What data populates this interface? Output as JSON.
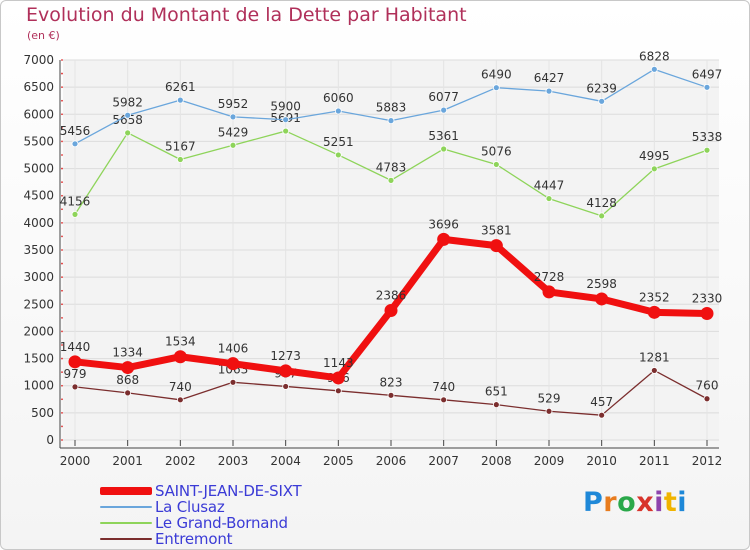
{
  "title": "Evolution du Montant de la Dette par Habitant",
  "subtitle": "(en €)",
  "brand": {
    "text": "Proxiti",
    "letter_colors": [
      "#1e88d8",
      "#e87c1e",
      "#2aa84a",
      "#d8342c",
      "#8e44ad",
      "#f0b400",
      "#1e88d8"
    ]
  },
  "chart_data": {
    "type": "line",
    "title": "Evolution du Montant de la Dette par Habitant",
    "subtitle": "(en €)",
    "x": [
      "2000",
      "2001",
      "2002",
      "2003",
      "2004",
      "2005",
      "2006",
      "2007",
      "2008",
      "2009",
      "2010",
      "2011",
      "2012"
    ],
    "ylim": [
      0,
      7000
    ],
    "yticks": [
      0,
      500,
      1000,
      1500,
      2000,
      2500,
      3000,
      3500,
      4000,
      4500,
      5000,
      5500,
      6000,
      6500,
      7000
    ],
    "grid": true,
    "legend_position": "bottom-left",
    "series": [
      {
        "name": "Entremont",
        "color": "#7b2e2e",
        "values": [
          979,
          868,
          740,
          1063,
          987,
          906,
          823,
          740,
          651,
          529,
          457,
          1281,
          760
        ],
        "labels": [
          "979",
          "868",
          "740",
          "1063",
          "987",
          "906",
          "823",
          "740",
          "651",
          "529",
          "457",
          "1281",
          "760"
        ]
      },
      {
        "name": "Le Grand-Bornand",
        "color": "#8ed45a",
        "values": [
          4156,
          5658,
          5167,
          5429,
          5691,
          5251,
          4783,
          5361,
          5076,
          4447,
          4128,
          4995,
          5338
        ],
        "labels": [
          "4156",
          "5658",
          "5167",
          "5429",
          "5691",
          "5251",
          "4783",
          "5361",
          "5076",
          "4447",
          "4128",
          "4995",
          "5338"
        ]
      },
      {
        "name": "La Clusaz",
        "color": "#6aa6dc",
        "values": [
          5456,
          5982,
          6261,
          5952,
          5900,
          6060,
          5883,
          6077,
          6490,
          6427,
          6239,
          6828,
          6497
        ],
        "labels": [
          "5456",
          "5982",
          "6261",
          "5952",
          "5900",
          "6060",
          "5883",
          "6077",
          "6490",
          "6427",
          "6239",
          "6828",
          "6497"
        ]
      },
      {
        "name": "SAINT-JEAN-DE-SIXT",
        "color": "#f01010",
        "values": [
          1440,
          1334,
          1534,
          1406,
          1273,
          1143,
          2386,
          3696,
          3581,
          2728,
          2598,
          2352,
          2330
        ],
        "labels": [
          "1440",
          "1334",
          "1534",
          "1406",
          "1273",
          "1143",
          "2386",
          "3696",
          "3581",
          "2728",
          "2598",
          "2352",
          "2330"
        ]
      }
    ]
  },
  "legend": [
    {
      "label": "SAINT-JEAN-DE-SIXT",
      "color": "#f01010"
    },
    {
      "label": "La Clusaz",
      "color": "#6aa6dc"
    },
    {
      "label": "Le Grand-Bornand",
      "color": "#8ed45a"
    },
    {
      "label": "Entremont",
      "color": "#7b2e2e"
    }
  ]
}
